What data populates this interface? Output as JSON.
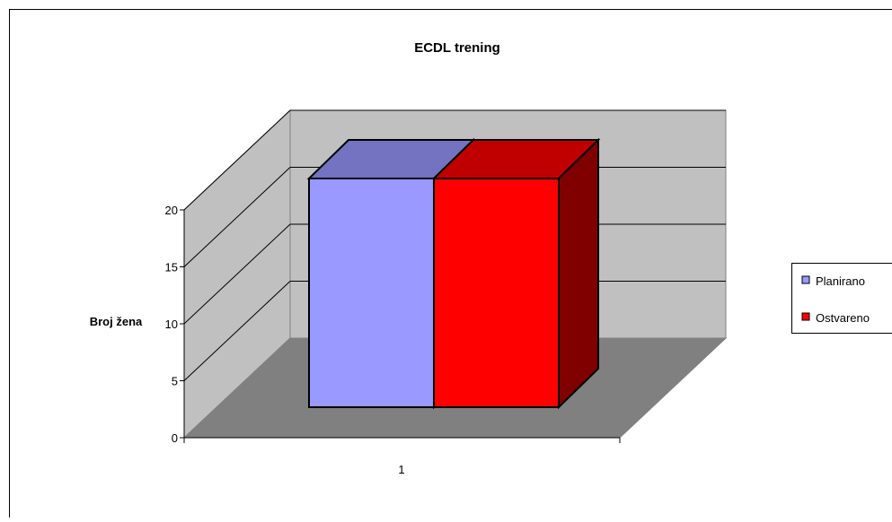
{
  "chart_data": {
    "type": "bar",
    "title": "ECDL trening",
    "ylabel": "Broj žena",
    "xlabel": "",
    "categories": [
      "1"
    ],
    "series": [
      {
        "name": "Planirano",
        "values": [
          20
        ],
        "color": "#9999FF",
        "top_color": "#7373C2",
        "side_color": "#6B6BB3"
      },
      {
        "name": "Ostvareno",
        "values": [
          20
        ],
        "color": "#FF0000",
        "top_color": "#C00000",
        "side_color": "#800000"
      }
    ],
    "ylim": [
      0,
      20
    ],
    "yticks": [
      0,
      5,
      10,
      15,
      20
    ],
    "grid": true,
    "legend_position": "right",
    "colors": {
      "wall": "#C0C0C0",
      "floor": "#808080",
      "gridline": "#000000"
    }
  }
}
